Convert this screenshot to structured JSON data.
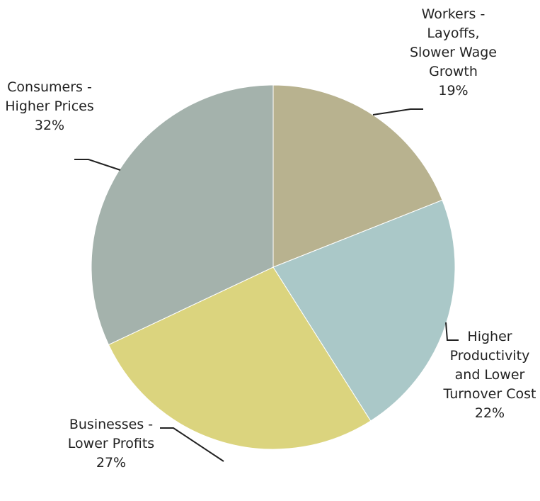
{
  "chart_data": {
    "type": "pie",
    "categories": [
      "Workers - Layoffs, Slower Wage Growth",
      "Higher Productivity and Lower Turnover Cost",
      "Businesses - Lower Profits",
      "Consumers -Higher Prices"
    ],
    "values": [
      19,
      22,
      27,
      32
    ],
    "value_labels": [
      "19%",
      "22%",
      "27%",
      "32%"
    ],
    "colors": [
      "#b8b28f",
      "#aac8c8",
      "#dbd47e",
      "#a4b2ac"
    ]
  }
}
